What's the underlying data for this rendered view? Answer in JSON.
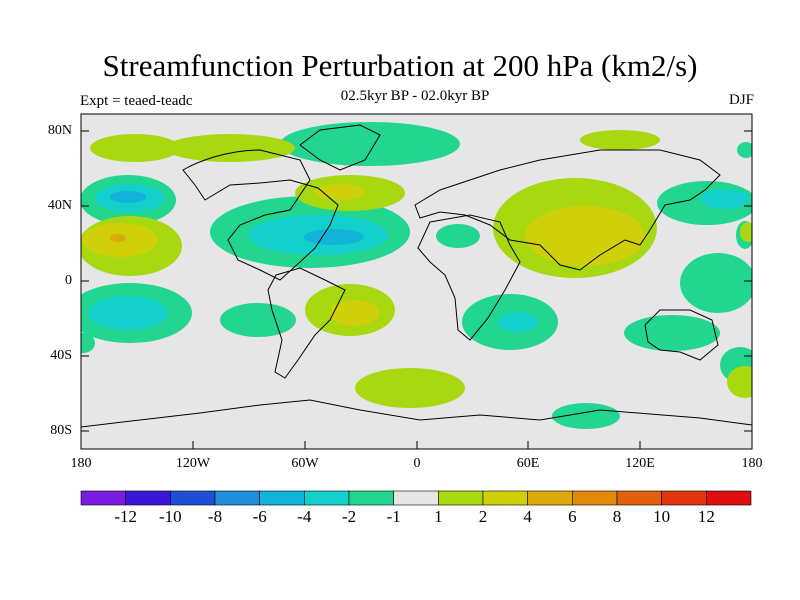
{
  "title": "Streamfunction Perturbation at 200 hPa (km2/s)",
  "subtitle": "02.5kyr BP - 02.0kyr BP",
  "left_string": "Expt = teaed-teadc",
  "right_string": "DJF",
  "lat_labels": [
    "80N",
    "40N",
    "0",
    "40S",
    "80S"
  ],
  "lon_labels": [
    "180",
    "120W",
    "60W",
    "0",
    "60E",
    "120E",
    "180"
  ],
  "colorbar": {
    "labels": [
      "-12",
      "-10",
      "-8",
      "-6",
      "-4",
      "-2",
      "-1",
      "1",
      "2",
      "4",
      "6",
      "8",
      "10",
      "12"
    ],
    "colors": [
      "#7b1de0",
      "#3a17d6",
      "#1f4fd6",
      "#1f8fdb",
      "#11b3d8",
      "#14d0cc",
      "#22d690",
      "#e6e6e6",
      "#a8d810",
      "#cfcf0a",
      "#dba90a",
      "#e08a0a",
      "#e0600d",
      "#e0350f",
      "#dd0f0f"
    ]
  },
  "fills": {
    "neutral": "#e6e6e6",
    "neg1": "#22d690",
    "neg2": "#14d0cc",
    "neg3": "#11b3d8",
    "pos1": "#a8d810",
    "pos2": "#cfcf0a",
    "pos3": "#dba90a"
  }
}
